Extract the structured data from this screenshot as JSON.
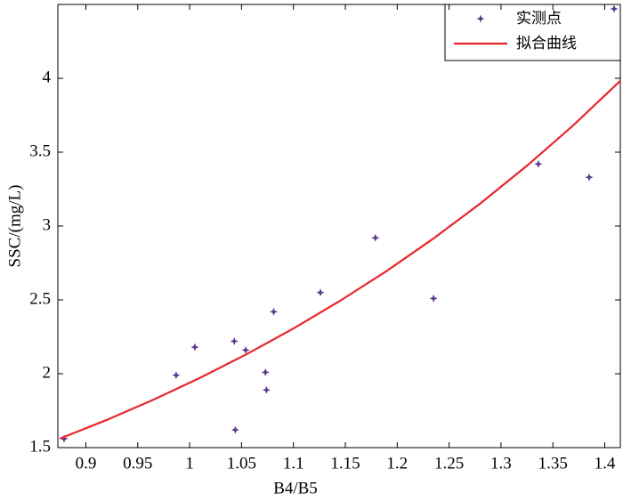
{
  "chart_data": {
    "type": "scatter",
    "x_label": "B4/B5",
    "y_label": "SSC/(mg/L)",
    "xlim": [
      0.873,
      1.415
    ],
    "ylim": [
      1.5,
      4.5
    ],
    "xticks": [
      0.9,
      0.95,
      1,
      1.05,
      1.1,
      1.15,
      1.2,
      1.25,
      1.3,
      1.35,
      1.4
    ],
    "yticks": [
      1.5,
      2,
      2.5,
      3,
      3.5,
      4
    ],
    "legend": "upper right",
    "series": [
      {
        "name": "实测点",
        "kind": "points",
        "color": "#5b3a8c",
        "x": [
          0.879,
          0.987,
          1.005,
          1.043,
          1.044,
          1.054,
          1.073,
          1.074,
          1.081,
          1.126,
          1.179,
          1.235,
          1.336,
          1.385,
          1.409
        ],
        "values": [
          1.56,
          1.99,
          2.18,
          2.22,
          1.62,
          2.16,
          2.01,
          1.89,
          2.42,
          2.55,
          2.92,
          2.51,
          3.42,
          3.33,
          4.47
        ]
      },
      {
        "name": "拟合曲线",
        "kind": "line",
        "color": "#e8262a",
        "x": [
          0.875,
          0.92,
          0.965,
          1.01,
          1.055,
          1.1,
          1.145,
          1.19,
          1.235,
          1.28,
          1.325,
          1.37,
          1.415
        ],
        "values": [
          1.561,
          1.687,
          1.824,
          1.972,
          2.133,
          2.306,
          2.494,
          2.696,
          2.916,
          3.152,
          3.408,
          3.684,
          3.983
        ]
      }
    ]
  }
}
